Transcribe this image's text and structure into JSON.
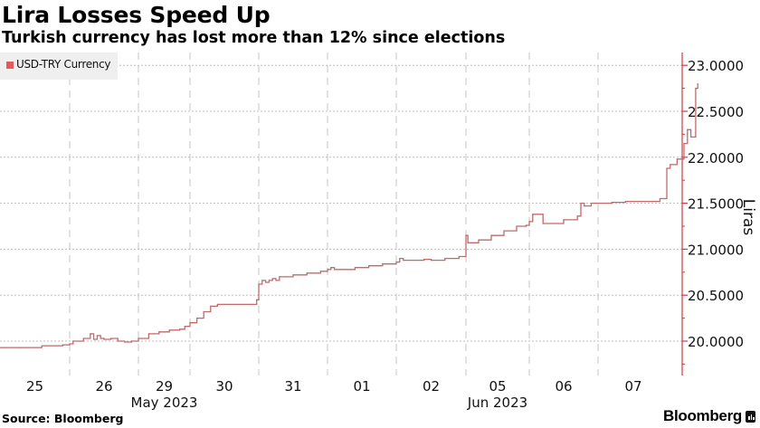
{
  "header": {
    "title": "Lira Losses Speed Up",
    "subtitle": "Turkish currency has lost more than 12% since elections"
  },
  "footer": {
    "source": "Source: Bloomberg",
    "brand": "Bloomberg",
    "brand_icon": "bloomberg-terminal-icon"
  },
  "colors": {
    "series": "#c06a6a",
    "legend_swatch": "#e8595d",
    "axis": "#d0393f",
    "grid": "#bdbdbd",
    "legend_bg": "#efefef"
  },
  "chart_data": {
    "type": "line",
    "title": "Lira Losses Speed Up",
    "subtitle": "Turkish currency has lost more than 12% since elections",
    "xlabel": "",
    "ylabel": "Liras",
    "ylim": [
      19.8,
      23.15
    ],
    "yticks": [
      20.0,
      20.5,
      21.0,
      21.5,
      22.0,
      22.5,
      23.0
    ],
    "ytick_labels": [
      "20.0000",
      "20.5000",
      "21.0000",
      "21.5000",
      "22.0000",
      "22.5000",
      "23.0000"
    ],
    "y_axis_side": "right",
    "grid": true,
    "legend": {
      "position": "top-left",
      "entries": [
        "USD-TRY Currency"
      ]
    },
    "categories": [
      "25",
      "26",
      "29",
      "30",
      "31",
      "01",
      "02",
      "05",
      "06",
      "07"
    ],
    "month_labels": [
      {
        "label": "May 2023",
        "under": "29"
      },
      {
        "label": "Jun 2023",
        "under": "05"
      }
    ],
    "series": [
      {
        "name": "USD-TRY Currency",
        "note": "x = trading-day index (0 = start of 25 May session, 1 day per category)",
        "x": [
          0.0,
          0.3,
          0.6,
          0.9,
          1.0,
          1.05,
          1.2,
          1.3,
          1.35,
          1.4,
          1.45,
          1.5,
          1.6,
          1.7,
          1.8,
          1.9,
          2.0,
          2.2,
          2.4,
          2.6,
          2.8,
          2.9,
          3.0,
          3.1,
          3.2,
          3.3,
          3.4,
          3.5,
          3.9,
          3.97,
          4.0,
          4.05,
          4.1,
          4.15,
          4.2,
          4.25,
          4.3,
          4.4,
          4.5,
          4.7,
          4.9,
          5.0,
          5.05,
          5.1,
          5.2,
          5.4,
          5.6,
          5.8,
          6.0,
          6.05,
          6.1,
          6.3,
          6.4,
          6.5,
          6.7,
          6.9,
          7.0,
          7.03,
          7.2,
          7.4,
          7.6,
          7.8,
          7.95,
          8.0,
          8.05,
          8.2,
          8.5,
          8.7,
          8.75,
          8.8,
          8.9,
          9.0,
          9.2,
          9.4,
          9.9,
          10.0,
          10.05,
          10.15,
          10.25,
          10.3,
          10.35,
          10.42,
          10.45
        ],
        "y": [
          19.93,
          19.93,
          19.95,
          19.96,
          19.97,
          20.0,
          20.03,
          20.08,
          20.02,
          20.06,
          20.03,
          20.02,
          20.03,
          20.0,
          19.99,
          20.0,
          20.03,
          20.08,
          20.1,
          20.12,
          20.13,
          20.16,
          20.2,
          20.25,
          20.32,
          20.38,
          20.4,
          20.4,
          20.4,
          20.45,
          20.62,
          20.66,
          20.64,
          20.66,
          20.68,
          20.66,
          20.7,
          20.7,
          20.72,
          20.74,
          20.76,
          20.78,
          20.8,
          20.78,
          20.78,
          20.8,
          20.82,
          20.84,
          20.86,
          20.9,
          20.88,
          20.88,
          20.89,
          20.88,
          20.9,
          20.92,
          21.15,
          21.07,
          21.1,
          21.15,
          21.2,
          21.25,
          21.26,
          21.3,
          21.38,
          21.28,
          21.32,
          21.36,
          21.5,
          21.47,
          21.5,
          21.5,
          21.51,
          21.52,
          21.55,
          21.88,
          21.92,
          21.98,
          22.15,
          22.3,
          22.22,
          22.75,
          22.8
        ]
      }
    ]
  }
}
